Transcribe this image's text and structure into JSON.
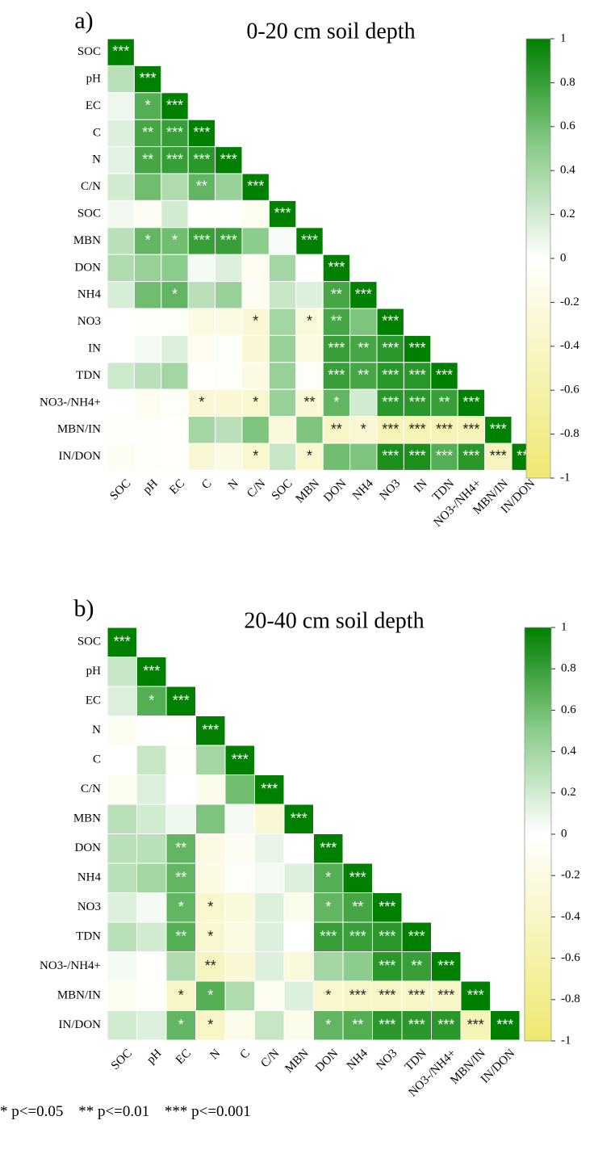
{
  "chart_data": [
    {
      "type": "heatmap",
      "panel_label": "a)",
      "title": "0-20 cm soil depth",
      "row_labels": [
        "SOC",
        "pH",
        "EC",
        "C",
        "N",
        "C/N",
        "SOC",
        "MBN",
        "DON",
        "NH4",
        "NO3",
        "IN",
        "TDN",
        "NO3-/NH4+",
        "MBN/IN",
        "IN/DON"
      ],
      "col_labels": [
        "SOC",
        "pH",
        "EC",
        "C",
        "N",
        "C/N",
        "SOC",
        "MBN",
        "DON",
        "NH4",
        "NO3",
        "IN",
        "TDN",
        "NO3-/NH4+",
        "MBN/IN",
        "IN/DON"
      ],
      "values": [
        [
          1
        ],
        [
          0.3,
          1
        ],
        [
          0.08,
          0.7,
          1
        ],
        [
          0.15,
          0.75,
          0.8,
          1
        ],
        [
          0.12,
          0.75,
          0.8,
          0.85,
          1
        ],
        [
          0.2,
          0.6,
          0.35,
          0.65,
          0.45,
          1
        ],
        [
          0.06,
          -0.08,
          0.2,
          -0.02,
          -0.02,
          -0.1,
          1
        ],
        [
          0.3,
          0.65,
          0.6,
          0.8,
          0.8,
          0.5,
          0.03,
          1
        ],
        [
          0.35,
          0.45,
          0.5,
          0.05,
          0.15,
          -0.1,
          0.4,
          0,
          1
        ],
        [
          0.18,
          0.6,
          0.65,
          0.3,
          0.45,
          -0.08,
          0.25,
          0.15,
          0.75,
          1
        ],
        [
          0,
          -0.03,
          -0.05,
          -0.2,
          -0.2,
          -0.3,
          0.4,
          -0.25,
          0.75,
          0.55,
          1
        ],
        [
          0,
          0.05,
          0.15,
          -0.12,
          -0.05,
          -0.3,
          0.45,
          -0.2,
          0.8,
          0.75,
          0.85,
          1
        ],
        [
          0.22,
          0.3,
          0.4,
          -0.02,
          -0.05,
          -0.2,
          0.45,
          -0.05,
          0.8,
          0.75,
          0.85,
          0.85,
          1
        ],
        [
          0,
          -0.1,
          -0.05,
          -0.3,
          -0.3,
          -0.35,
          0.45,
          -0.3,
          0.65,
          0.2,
          0.85,
          0.85,
          0.8,
          1
        ],
        [
          -0.03,
          -0.05,
          -0.02,
          0.4,
          0.3,
          0.55,
          -0.25,
          0.55,
          -0.4,
          -0.3,
          -0.5,
          -0.5,
          -0.5,
          -0.5,
          1
        ],
        [
          -0.08,
          -0.05,
          -0.02,
          -0.3,
          -0.2,
          -0.35,
          0.25,
          -0.35,
          0.6,
          0.55,
          0.9,
          0.9,
          0.7,
          0.85,
          -0.45,
          1
        ]
      ],
      "significance": [
        [
          "***"
        ],
        [
          "",
          "***"
        ],
        [
          "",
          "*",
          "***"
        ],
        [
          "",
          "**",
          "***",
          "***"
        ],
        [
          "",
          "**",
          "***",
          "***",
          "***"
        ],
        [
          "",
          "",
          "",
          "**",
          "",
          "***"
        ],
        [
          "",
          "",
          "",
          "",
          "",
          "",
          "***"
        ],
        [
          "",
          "*",
          "*",
          "***",
          "***",
          "",
          "",
          "***"
        ],
        [
          "",
          "",
          "",
          "",
          "",
          "",
          "",
          "",
          "***"
        ],
        [
          "",
          "",
          "*",
          "",
          "",
          "",
          "",
          "",
          "**",
          "***"
        ],
        [
          "",
          "",
          "",
          "",
          "",
          "*",
          "",
          "*",
          "**",
          "",
          "***"
        ],
        [
          "",
          "",
          "",
          "",
          "",
          "",
          "",
          "",
          "***",
          "**",
          "***",
          "***"
        ],
        [
          "",
          "",
          "",
          "",
          "",
          "",
          "",
          "",
          "***",
          "**",
          "***",
          "***",
          "***"
        ],
        [
          "",
          "",
          "",
          "*",
          "",
          "*",
          "",
          "**",
          "*",
          "",
          "***",
          "***",
          "**",
          "***"
        ],
        [
          "",
          "",
          "",
          "",
          "",
          "",
          "",
          "",
          "**",
          "*",
          "***",
          "***",
          "***",
          "***",
          "***"
        ],
        [
          "",
          "",
          "",
          "",
          "",
          "*",
          "",
          "*",
          "",
          "",
          "***",
          "***",
          "***",
          "***",
          "***",
          "***"
        ]
      ],
      "colorbar": {
        "min": -1,
        "max": 1,
        "ticks": [
          "1",
          "0.8",
          "0.6",
          "0.4",
          "0.2",
          "0",
          "-0.2",
          "-0.4",
          "-0.6",
          "-0.8",
          "-1"
        ]
      }
    },
    {
      "type": "heatmap",
      "panel_label": "b)",
      "title": "20-40 cm soil depth",
      "row_labels": [
        "SOC",
        "pH",
        "EC",
        "N",
        "C",
        "C/N",
        "MBN",
        "DON",
        "NH4",
        "NO3",
        "TDN",
        "NO3-/NH4+",
        "MBN/IN",
        "IN/DON"
      ],
      "col_labels": [
        "SOC",
        "pH",
        "EC",
        "N",
        "C",
        "C/N",
        "MBN",
        "DON",
        "NH4",
        "NO3",
        "TDN",
        "NO3-/NH4+",
        "MBN/IN",
        "IN/DON"
      ],
      "values": [
        [
          1
        ],
        [
          0.25,
          1
        ],
        [
          0.15,
          0.7,
          1
        ],
        [
          -0.1,
          0,
          0,
          1
        ],
        [
          0,
          0.25,
          -0.05,
          0.4,
          1
        ],
        [
          -0.1,
          0.15,
          0,
          -0.15,
          0.6,
          1
        ],
        [
          0.3,
          0.2,
          0.08,
          0.55,
          0.05,
          -0.3,
          1
        ],
        [
          0.3,
          0.3,
          0.65,
          -0.2,
          -0.08,
          0.1,
          0,
          1
        ],
        [
          0.3,
          0.4,
          0.65,
          -0.2,
          -0.05,
          0.05,
          0.15,
          0.7,
          1
        ],
        [
          0.15,
          0.05,
          0.65,
          -0.35,
          -0.25,
          0.15,
          -0.15,
          0.65,
          0.75,
          1
        ],
        [
          0.3,
          0.2,
          0.7,
          -0.35,
          -0.2,
          0.15,
          0,
          0.8,
          0.8,
          0.85,
          1
        ],
        [
          0.05,
          -0.02,
          0.35,
          -0.45,
          -0.3,
          0.15,
          -0.25,
          0.4,
          0.5,
          0.85,
          0.8,
          1
        ],
        [
          -0.1,
          -0.05,
          -0.4,
          0.7,
          0.35,
          -0.1,
          0.15,
          -0.35,
          -0.4,
          -0.4,
          -0.4,
          -0.4,
          1
        ],
        [
          0.2,
          0.15,
          0.65,
          -0.4,
          -0.15,
          0.25,
          -0.15,
          0.65,
          0.7,
          0.85,
          0.85,
          0.85,
          -0.5,
          1
        ]
      ],
      "significance": [
        [
          "***"
        ],
        [
          "",
          "***"
        ],
        [
          "",
          "*",
          "***"
        ],
        [
          "",
          "",
          "",
          "***"
        ],
        [
          "",
          "",
          "",
          "",
          "***"
        ],
        [
          "",
          "",
          "",
          "",
          "",
          "***"
        ],
        [
          "",
          "",
          "",
          "",
          "",
          "",
          "***"
        ],
        [
          "",
          "",
          "**",
          "",
          "",
          "",
          "",
          "***"
        ],
        [
          "",
          "",
          "**",
          "",
          "",
          "",
          "",
          "*",
          "***"
        ],
        [
          "",
          "",
          "*",
          "*",
          "",
          "",
          "",
          "*",
          "**",
          "***"
        ],
        [
          "",
          "",
          "**",
          "*",
          "",
          "",
          "",
          "***",
          "***",
          "***",
          "***"
        ],
        [
          "",
          "",
          "",
          "**",
          "",
          "",
          "",
          "",
          "",
          "***",
          "**",
          "***"
        ],
        [
          "",
          "",
          "*",
          "*",
          "",
          "",
          "",
          "*",
          "***",
          "***",
          "***",
          "***",
          "***"
        ],
        [
          "",
          "",
          "*",
          "*",
          "",
          "",
          "",
          "*",
          "**",
          "***",
          "***",
          "***",
          "***",
          "***"
        ]
      ],
      "colorbar": {
        "min": -1,
        "max": 1,
        "ticks": [
          "1",
          "0.8",
          "0.6",
          "0.4",
          "0.2",
          "0",
          "-0.2",
          "-0.4",
          "-0.6",
          "-0.8",
          "-1"
        ]
      }
    }
  ],
  "legend_footer": [
    "* p<=0.05",
    "** p<=0.01",
    "*** p<=0.001"
  ]
}
